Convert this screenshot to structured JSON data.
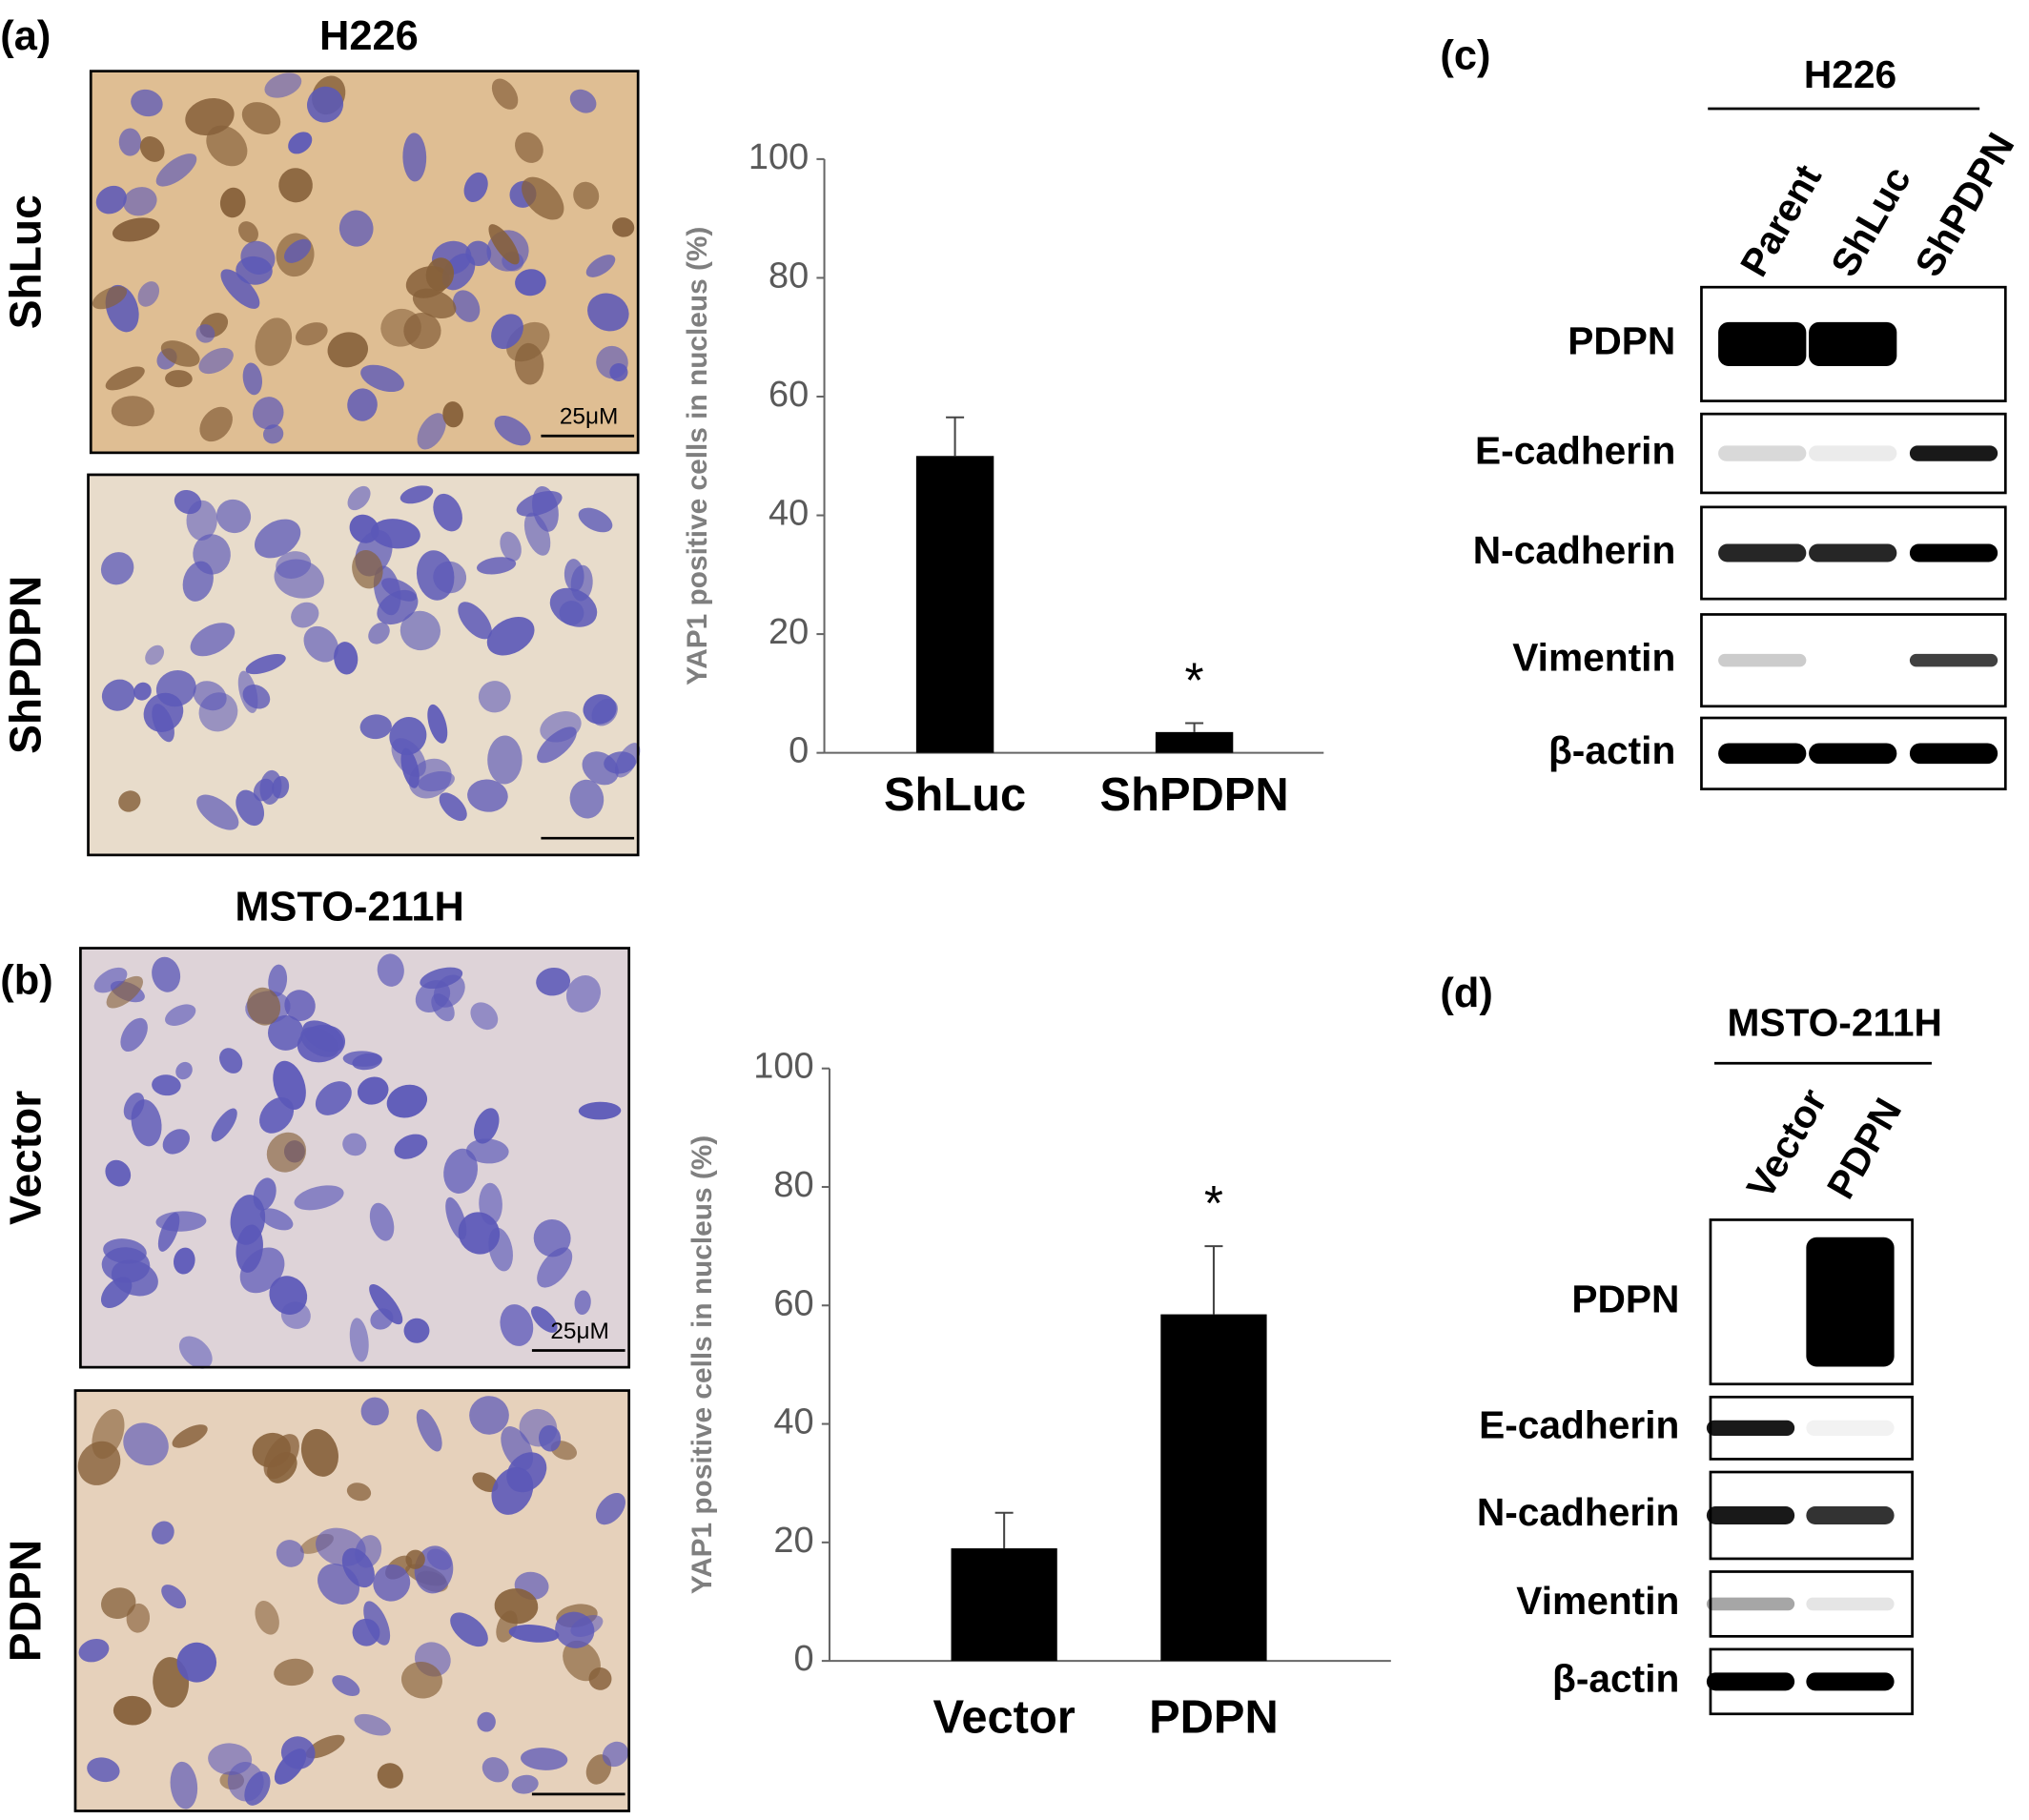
{
  "panels": [
    {
      "label": "(a)",
      "title": "H226",
      "images": [
        {
          "name": "ShLuc",
          "scale_bar": "25μM"
        },
        {
          "name": "ShPDPN"
        }
      ]
    },
    {
      "label": "(b)",
      "title": "MSTO-211H",
      "images": [
        {
          "name": "Vector",
          "scale_bar": "25μM"
        },
        {
          "name": "PDPN"
        }
      ]
    }
  ],
  "chart_data": [
    {
      "type": "bar",
      "ylabel": "YAP1 positive cells  in nucleus  (%)",
      "categories": [
        "ShLuc",
        "ShPDPN"
      ],
      "values": [
        50,
        3.5
      ],
      "errors": [
        6.5,
        1.5
      ],
      "significance": [
        null,
        "*"
      ],
      "color": "#000000",
      "ylim": [
        0,
        100
      ],
      "yticks": [
        0,
        20,
        40,
        60,
        80,
        100
      ],
      "grid": false
    },
    {
      "type": "bar",
      "ylabel": "YAP1 positive cells  in nucleus  (%)",
      "categories": [
        "Vector",
        "PDPN"
      ],
      "values": [
        19,
        58.5
      ],
      "errors": [
        6,
        11.5
      ],
      "significance": [
        null,
        "*"
      ],
      "color": "#000000",
      "ylim": [
        0,
        100
      ],
      "yticks": [
        0,
        20,
        40,
        60,
        80,
        100
      ],
      "grid": false
    }
  ],
  "blots": [
    {
      "label": "(c)",
      "title": "H226",
      "lanes": [
        "Parent",
        "ShLuc",
        "ShPDPN"
      ],
      "rows": [
        "PDPN",
        "E-cadherin",
        "N-cadherin",
        "Vimentin",
        "β-actin"
      ]
    },
    {
      "label": "(d)",
      "title": "MSTO-211H",
      "lanes": [
        "Vector",
        "PDPN"
      ],
      "rows": [
        "PDPN",
        "E-cadherin",
        "N-cadherin",
        "Vimentin",
        "β-actin"
      ]
    }
  ]
}
